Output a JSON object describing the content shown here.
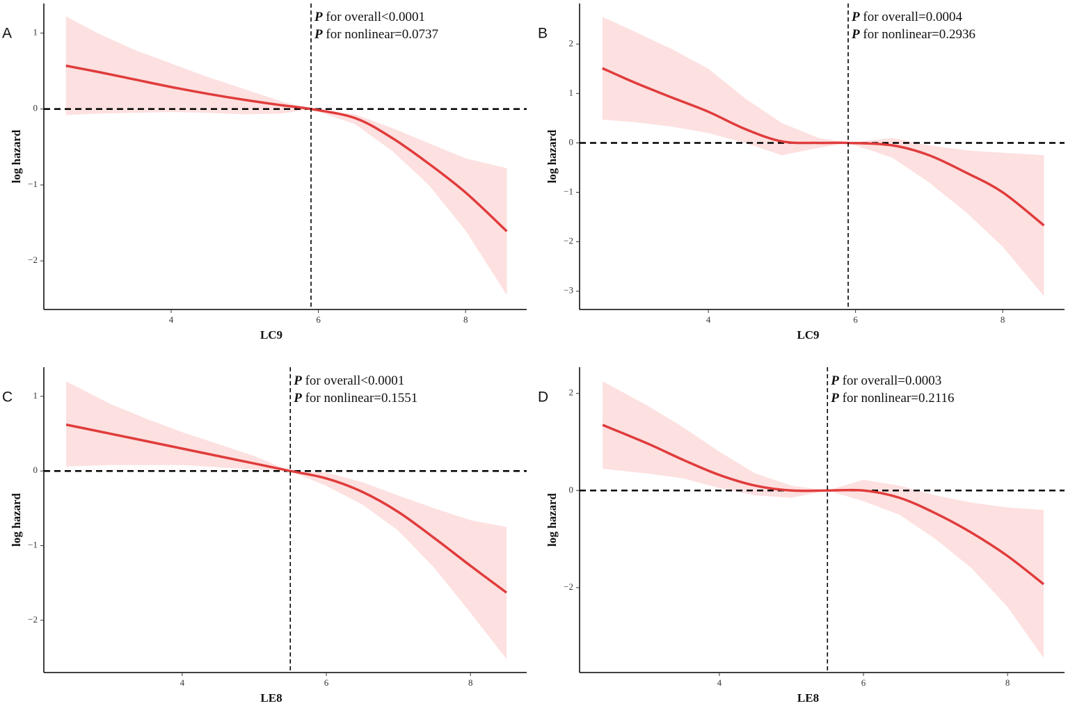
{
  "chart_data": [
    {
      "type": "line",
      "label": "A",
      "xlabel": "LC9",
      "ylabel": "log hazard",
      "x": [
        2.57,
        3,
        3.5,
        4,
        4.5,
        5,
        5.5,
        5.9,
        6.5,
        7,
        7.5,
        8,
        8.56
      ],
      "series": [
        {
          "color": "#e03c3c",
          "band_color": "#fde0e0",
          "values": [
            0.57,
            0.49,
            0.39,
            0.29,
            0.2,
            0.12,
            0.05,
            0,
            -0.12,
            -0.38,
            -0.72,
            -1.1,
            -1.61
          ],
          "upper": [
            1.22,
            1.0,
            0.78,
            0.6,
            0.42,
            0.26,
            0.1,
            0,
            -0.07,
            -0.25,
            -0.45,
            -0.65,
            -0.78
          ],
          "lower": [
            -0.08,
            -0.06,
            -0.05,
            -0.04,
            -0.05,
            -0.07,
            -0.06,
            0,
            -0.2,
            -0.55,
            -1.0,
            -1.6,
            -2.45
          ]
        }
      ],
      "xlim": [
        2.27,
        8.83
      ],
      "xticks": [
        4,
        6,
        8
      ],
      "ylim": [
        -2.64,
        1.39
      ],
      "yticks": [
        {
          "value": -2,
          "label": "−2"
        },
        {
          "value": -1,
          "label": "−1"
        },
        0,
        1
      ],
      "vline": 5.9,
      "hline": 0,
      "annotations": [
        "P for overall<0.0001",
        "P for nonlinear=0.0737"
      ]
    },
    {
      "type": "line",
      "label": "B",
      "xlabel": "LC9",
      "ylabel": "log hazard",
      "x": [
        2.56,
        3,
        3.5,
        4,
        4.5,
        5,
        5.5,
        5.9,
        6.5,
        7,
        7.5,
        8,
        8.56
      ],
      "series": [
        {
          "color": "#e03c3c",
          "band_color": "#fde0e0",
          "values": [
            1.51,
            1.22,
            0.92,
            0.63,
            0.28,
            0.03,
            0.0,
            0,
            -0.05,
            -0.25,
            -0.6,
            -1.0,
            -1.67
          ],
          "upper": [
            2.55,
            2.25,
            1.9,
            1.5,
            0.9,
            0.4,
            0.1,
            0,
            0.1,
            -0.05,
            -0.15,
            -0.2,
            -0.25
          ],
          "lower": [
            0.47,
            0.42,
            0.33,
            0.2,
            0.0,
            -0.25,
            -0.1,
            0,
            -0.3,
            -0.8,
            -1.4,
            -2.1,
            -3.1
          ]
        }
      ],
      "xlim": [
        2.25,
        8.84
      ],
      "xticks": [
        4,
        6,
        8
      ],
      "ylim": [
        -3.37,
        2.82
      ],
      "yticks": [
        {
          "value": -3,
          "label": "−3"
        },
        {
          "value": -2,
          "label": "−2"
        },
        {
          "value": -1,
          "label": "−1"
        },
        0,
        1,
        2
      ],
      "vline": 5.9,
      "hline": 0,
      "annotations": [
        "P for overall=0.0004",
        "P for nonlinear=0.2936"
      ]
    },
    {
      "type": "line",
      "label": "C",
      "xlabel": "LE8",
      "ylabel": "log hazard",
      "x": [
        2.39,
        3,
        3.5,
        4,
        4.5,
        5,
        5.5,
        6,
        6.5,
        7,
        7.5,
        8,
        8.5
      ],
      "series": [
        {
          "color": "#e03c3c",
          "band_color": "#fde0e0",
          "values": [
            0.62,
            0.5,
            0.4,
            0.3,
            0.2,
            0.1,
            0,
            -0.1,
            -0.28,
            -0.55,
            -0.9,
            -1.27,
            -1.63
          ],
          "upper": [
            1.2,
            0.9,
            0.7,
            0.52,
            0.36,
            0.2,
            0,
            -0.02,
            -0.15,
            -0.33,
            -0.5,
            -0.66,
            -0.75
          ],
          "lower": [
            0.06,
            0.08,
            0.08,
            0.08,
            0.05,
            0.02,
            0,
            -0.2,
            -0.45,
            -0.8,
            -1.3,
            -1.9,
            -2.52
          ]
        }
      ],
      "xlim": [
        2.08,
        8.78
      ],
      "xticks": [
        4,
        6,
        8
      ],
      "ylim": [
        -2.7,
        1.39
      ],
      "yticks": [
        {
          "value": -2,
          "label": "−2"
        },
        {
          "value": -1,
          "label": "−1"
        },
        0,
        1
      ],
      "vline": 5.5,
      "hline": 0,
      "annotations": [
        "P for overall<0.0001",
        "P for nonlinear=0.1551"
      ]
    },
    {
      "type": "line",
      "label": "D",
      "xlabel": "LE8",
      "ylabel": "log hazard",
      "x": [
        2.38,
        3,
        3.5,
        4,
        4.5,
        5,
        5.5,
        6,
        6.5,
        7,
        7.5,
        8,
        8.5
      ],
      "series": [
        {
          "color": "#e03c3c",
          "band_color": "#fde0e0",
          "values": [
            1.35,
            0.97,
            0.63,
            0.32,
            0.1,
            0,
            0,
            0,
            -0.15,
            -0.47,
            -0.87,
            -1.35,
            -1.93
          ],
          "upper": [
            2.25,
            1.75,
            1.3,
            0.8,
            0.35,
            0.1,
            0,
            0.22,
            0.1,
            -0.1,
            -0.25,
            -0.35,
            -0.4
          ],
          "lower": [
            0.45,
            0.35,
            0.25,
            0.05,
            -0.1,
            -0.15,
            0,
            -0.22,
            -0.5,
            -1.0,
            -1.6,
            -2.4,
            -3.45
          ]
        }
      ],
      "xlim": [
        2.06,
        8.79
      ],
      "xticks": [
        4,
        6,
        8
      ],
      "ylim": [
        -3.75,
        2.54
      ],
      "yticks": [
        {
          "value": -2,
          "label": "−2"
        },
        0,
        2
      ],
      "vline": 5.5,
      "hline": 0,
      "annotations": [
        "P for overall=0.0003",
        "P for nonlinear=0.2116"
      ]
    }
  ]
}
